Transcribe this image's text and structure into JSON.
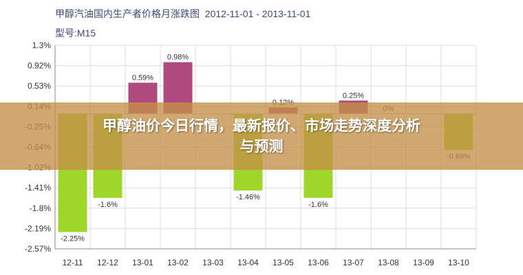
{
  "chart_data": {
    "type": "bar",
    "title": "甲醇汽油国内生产者价格月涨跌图",
    "date_range": "2012-11-01 - 2013-11-01",
    "model_label": "型号:M15",
    "categories": [
      "12-11",
      "12-12",
      "13-01",
      "13-02",
      "13-03",
      "13-04",
      "13-05",
      "13-06",
      "13-07",
      "13-08",
      "13-09",
      "13-10"
    ],
    "values": [
      -2.25,
      -1.6,
      0.59,
      0.98,
      null,
      -1.46,
      0.12,
      -1.6,
      0.25,
      0,
      null,
      -0.69
    ],
    "data_labels": [
      "-2.25%",
      "-1.6%",
      "0.59%",
      "0.98%",
      "",
      "-1.46%",
      "0.12%",
      "-1.6%",
      "0.25%",
      "0%",
      "",
      "-0.69%"
    ],
    "y_ticks": [
      "1.3%",
      "0.92%",
      "0.53%",
      "0.14%",
      "-0.25%",
      "-0.64%",
      "-1.02%",
      "-1.41%",
      "-1.8%",
      "-2.19%",
      "-2.57%"
    ],
    "ylim": [
      -2.57,
      1.3
    ],
    "xlabel": "",
    "ylabel": "",
    "grid": true,
    "colors": {
      "positive": "#b04a7e",
      "negative": "#9ed62a",
      "axis": "#888888",
      "grid": "#dddddd"
    }
  },
  "overlay": {
    "line1": "甲醇油价今日行情，最新报价、市场走势深度分析",
    "line2": "与预测"
  }
}
